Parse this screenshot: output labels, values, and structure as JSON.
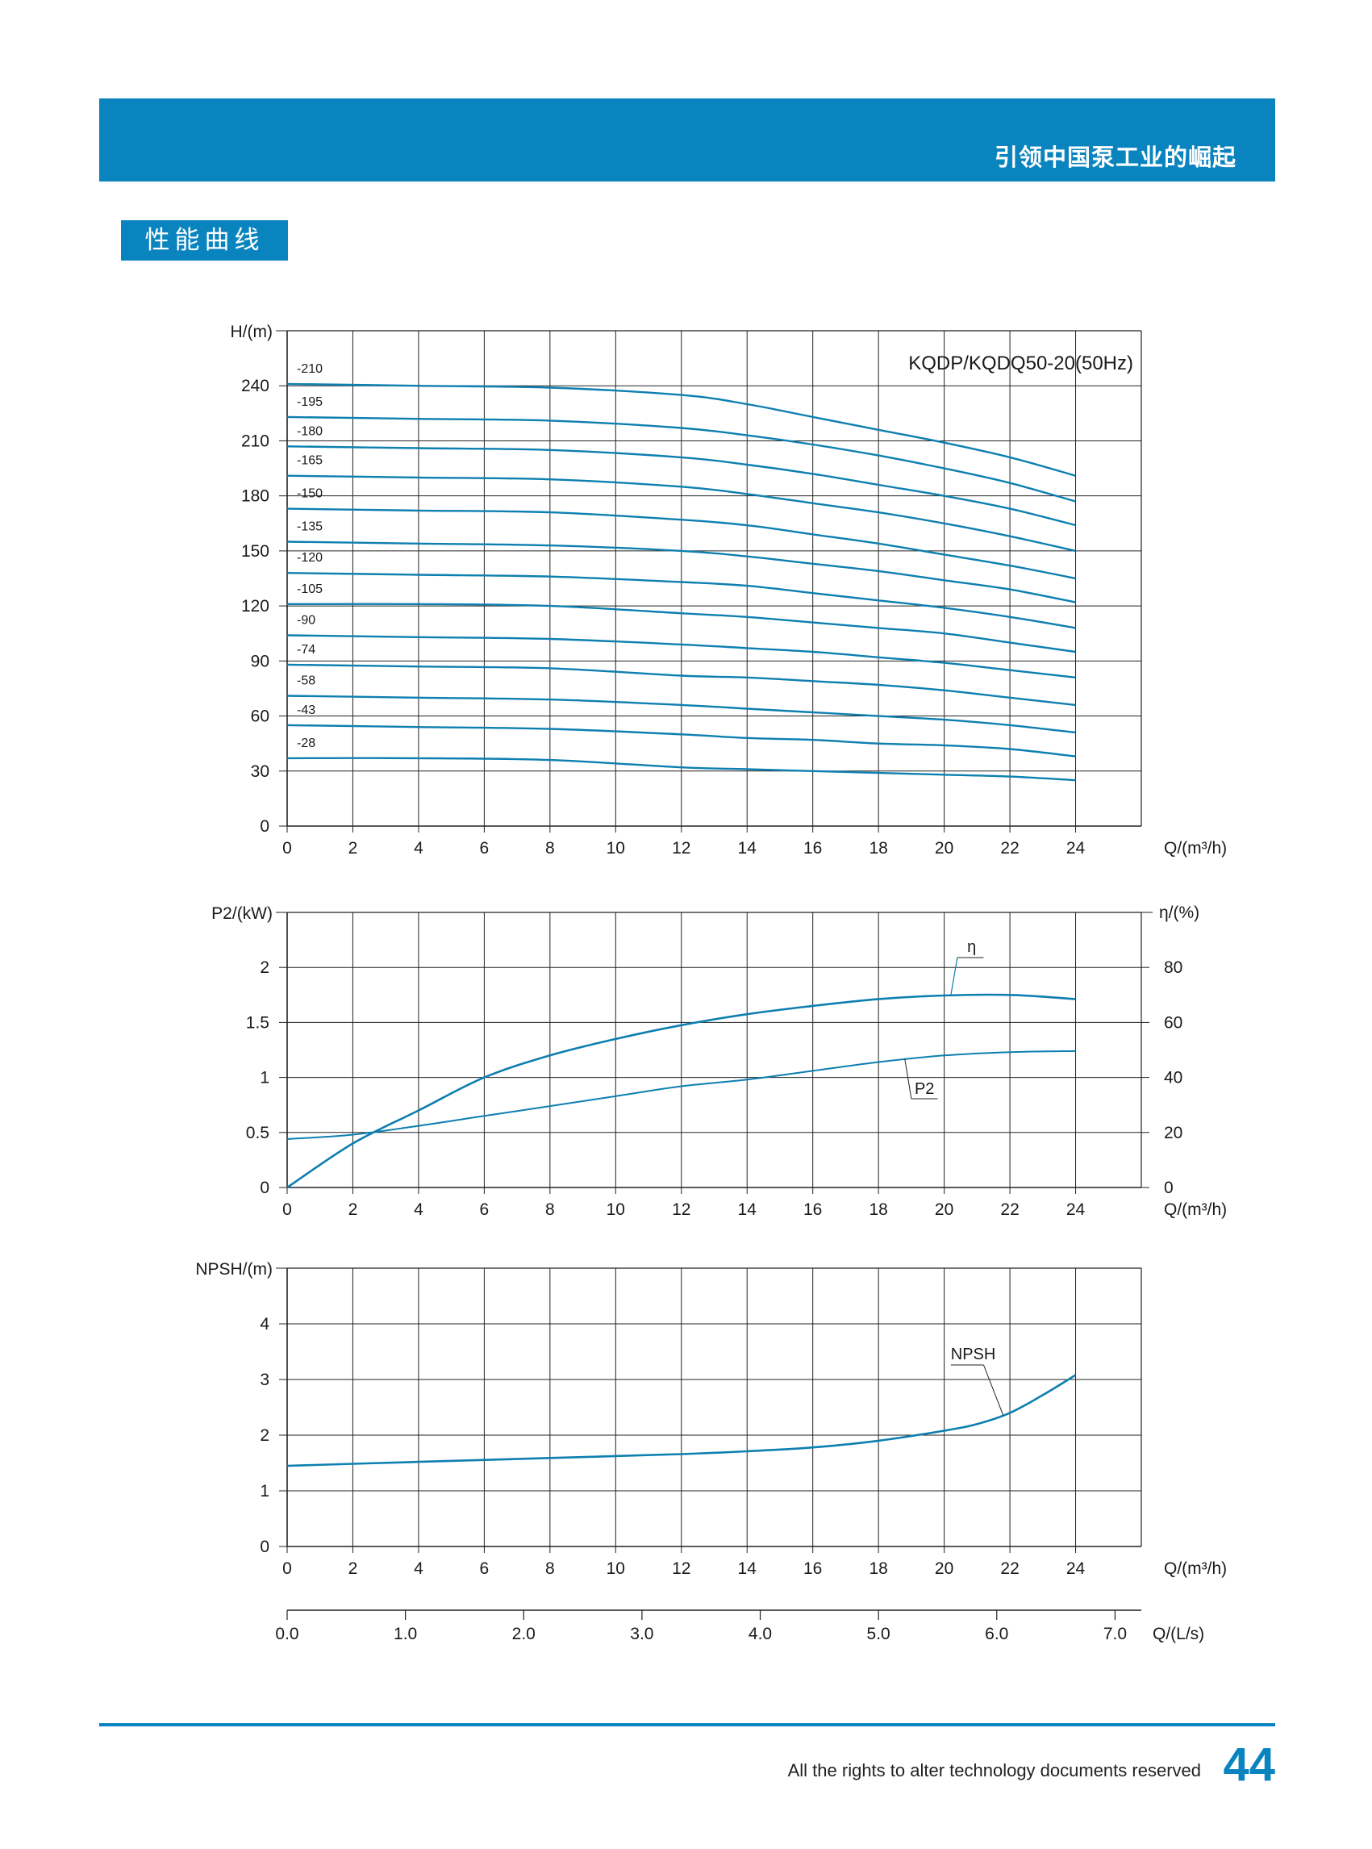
{
  "header": {
    "slogan": "引领中国泵工业的崛起"
  },
  "section": {
    "title": "性能曲线"
  },
  "footer": {
    "rights_text": "All the rights to alter technology documents reserved",
    "page_number": "44"
  },
  "colors": {
    "brand_blue": "#0a84bf",
    "curve": "#0d7fb0",
    "grid": "#222222"
  },
  "chart_data": [
    {
      "type": "line",
      "title": "KQDP/KQDQ50-20(50Hz)",
      "ylabel": "H/(m)",
      "xlabel": "Q/(m³/h)",
      "xlim": [
        0,
        26
      ],
      "ylim": [
        0,
        270
      ],
      "xticks": [
        0,
        2,
        4,
        6,
        8,
        10,
        12,
        14,
        16,
        18,
        20,
        22,
        24
      ],
      "yticks": [
        0,
        30,
        60,
        90,
        120,
        150,
        180,
        210,
        240
      ],
      "grid": true,
      "series": [
        {
          "name": "-210",
          "x": [
            0,
            4,
            8,
            12,
            14,
            16,
            18,
            20,
            22,
            24
          ],
          "y": [
            241,
            240,
            239,
            235,
            230,
            223,
            216,
            209,
            201,
            191
          ]
        },
        {
          "name": "-195",
          "x": [
            0,
            4,
            8,
            12,
            14,
            16,
            18,
            20,
            22,
            24
          ],
          "y": [
            223,
            222,
            221,
            217,
            213,
            208,
            202,
            195,
            187,
            177
          ]
        },
        {
          "name": "-180",
          "x": [
            0,
            4,
            8,
            12,
            14,
            16,
            18,
            20,
            22,
            24
          ],
          "y": [
            207,
            206,
            205,
            201,
            197,
            192,
            186,
            180,
            173,
            164
          ]
        },
        {
          "name": "-165",
          "x": [
            0,
            4,
            8,
            12,
            14,
            16,
            18,
            20,
            22,
            24
          ],
          "y": [
            191,
            190,
            189,
            185,
            181,
            176,
            171,
            165,
            158,
            150
          ]
        },
        {
          "name": "-150",
          "x": [
            0,
            4,
            8,
            12,
            14,
            16,
            18,
            20,
            22,
            24
          ],
          "y": [
            173,
            172,
            171,
            167,
            164,
            159,
            154,
            148,
            142,
            135
          ]
        },
        {
          "name": "-135",
          "x": [
            0,
            4,
            8,
            12,
            14,
            16,
            18,
            20,
            22,
            24
          ],
          "y": [
            155,
            154,
            153,
            150,
            147,
            143,
            139,
            134,
            129,
            122
          ]
        },
        {
          "name": "-120",
          "x": [
            0,
            4,
            8,
            12,
            14,
            16,
            18,
            20,
            22,
            24
          ],
          "y": [
            138,
            137,
            136,
            133,
            131,
            127,
            123,
            119,
            114,
            108
          ]
        },
        {
          "name": "-105",
          "x": [
            0,
            4,
            8,
            12,
            14,
            16,
            18,
            20,
            22,
            24
          ],
          "y": [
            121,
            121,
            120,
            116,
            114,
            111,
            108,
            105,
            100,
            95
          ]
        },
        {
          "name": "-90",
          "x": [
            0,
            4,
            8,
            12,
            14,
            16,
            18,
            20,
            22,
            24
          ],
          "y": [
            104,
            103,
            102,
            99,
            97,
            95,
            92,
            89,
            85,
            81
          ]
        },
        {
          "name": "-74",
          "x": [
            0,
            4,
            8,
            12,
            14,
            16,
            18,
            20,
            22,
            24
          ],
          "y": [
            88,
            87,
            86,
            82,
            81,
            79,
            77,
            74,
            70,
            66
          ]
        },
        {
          "name": "-58",
          "x": [
            0,
            4,
            8,
            12,
            14,
            16,
            18,
            20,
            22,
            24
          ],
          "y": [
            71,
            70,
            69,
            66,
            64,
            62,
            60,
            58,
            55,
            51
          ]
        },
        {
          "name": "-43",
          "x": [
            0,
            4,
            8,
            12,
            14,
            16,
            18,
            20,
            22,
            24
          ],
          "y": [
            55,
            54,
            53,
            50,
            48,
            47,
            45,
            44,
            42,
            38
          ]
        },
        {
          "name": "-28",
          "x": [
            0,
            4,
            8,
            12,
            14,
            16,
            18,
            20,
            22,
            24
          ],
          "y": [
            37,
            37,
            36,
            32,
            31,
            30,
            29,
            28,
            27,
            25
          ]
        }
      ]
    },
    {
      "type": "line",
      "ylabel": "P2/(kW)",
      "y2label": "η/(%)",
      "xlabel": "Q/(m³/h)",
      "xlim": [
        0,
        26
      ],
      "ylim": [
        0,
        2.5
      ],
      "y2lim": [
        0,
        100
      ],
      "xticks": [
        0,
        2,
        4,
        6,
        8,
        10,
        12,
        14,
        16,
        18,
        20,
        22,
        24
      ],
      "yticks": [
        0,
        0.5,
        1,
        1.5,
        2
      ],
      "y2ticks": [
        0,
        20,
        40,
        60,
        80
      ],
      "grid": true,
      "series": [
        {
          "name": "P2",
          "axis": "left",
          "x": [
            0,
            2,
            4,
            6,
            8,
            10,
            12,
            14,
            16,
            18,
            20,
            22,
            24
          ],
          "y": [
            0.44,
            0.48,
            0.56,
            0.65,
            0.74,
            0.83,
            0.92,
            0.98,
            1.06,
            1.14,
            1.2,
            1.23,
            1.24
          ]
        },
        {
          "name": "η",
          "axis": "right",
          "x": [
            0,
            2,
            4,
            6,
            8,
            10,
            12,
            14,
            16,
            18,
            20,
            22,
            24
          ],
          "y": [
            0,
            16,
            28,
            40,
            48,
            54,
            59,
            63,
            66,
            68.5,
            69.8,
            70,
            68.5
          ]
        }
      ]
    },
    {
      "type": "line",
      "ylabel": "NPSH/(m)",
      "xlabel": "Q/(m³/h)",
      "x2label": "Q/(L/s)",
      "xlim": [
        0,
        26
      ],
      "ylim": [
        0,
        5
      ],
      "xticks": [
        0,
        2,
        4,
        6,
        8,
        10,
        12,
        14,
        16,
        18,
        20,
        22,
        24
      ],
      "yticks": [
        0,
        1,
        2,
        3,
        4
      ],
      "x2ticks": [
        "0.0",
        "1.0",
        "2.0",
        "3.0",
        "4.0",
        "5.0",
        "6.0",
        "7.0"
      ],
      "grid": true,
      "series": [
        {
          "name": "NPSH",
          "x": [
            0,
            4,
            8,
            12,
            14,
            16,
            18,
            20,
            21,
            22,
            23,
            24
          ],
          "y": [
            1.45,
            1.52,
            1.59,
            1.66,
            1.71,
            1.78,
            1.9,
            2.08,
            2.2,
            2.4,
            2.72,
            3.08
          ]
        }
      ]
    }
  ]
}
